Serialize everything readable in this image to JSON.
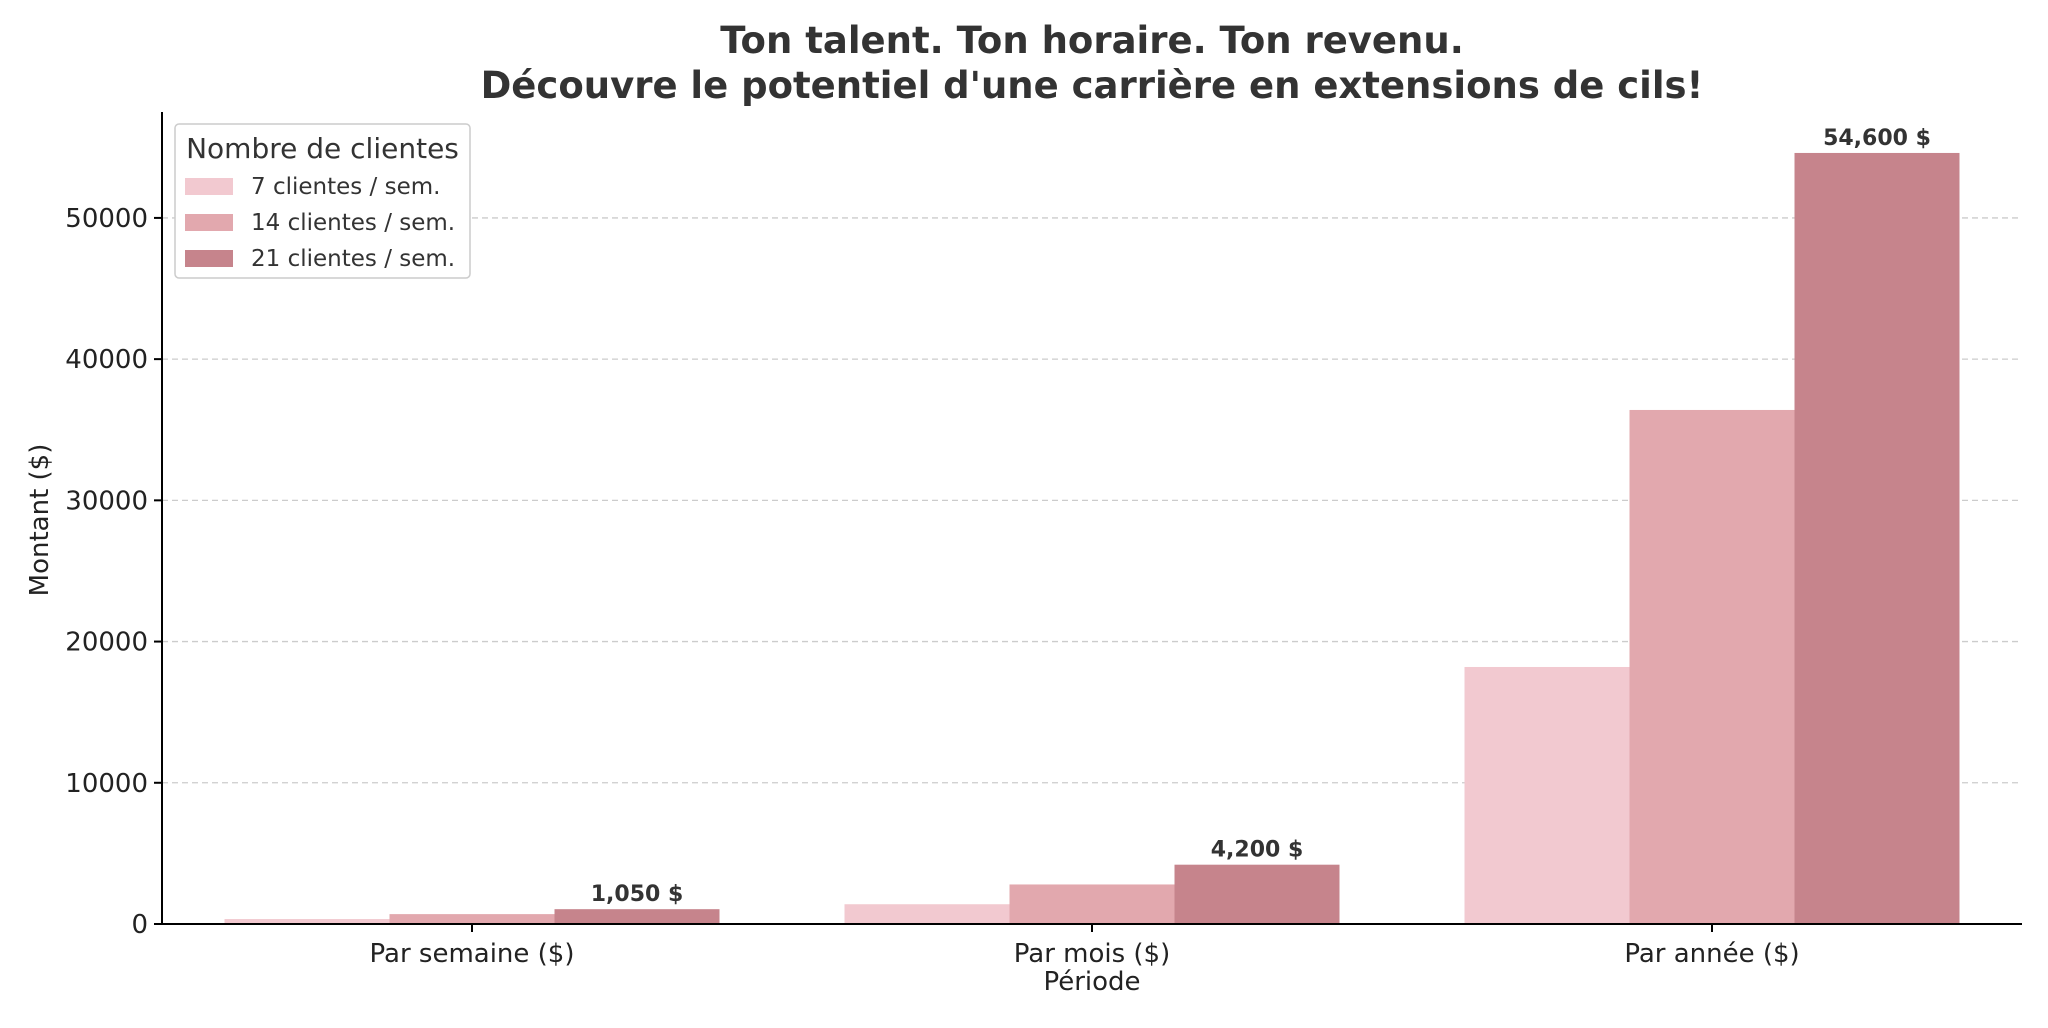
{
  "chart_data": {
    "type": "bar",
    "title_line1": "Ton talent. Ton horaire. Ton revenu.",
    "title_line2": "Découvre le potentiel d'une carrière en extensions de cils!",
    "xlabel": "Période",
    "ylabel": "Montant ($)",
    "categories": [
      "Par semaine ($)",
      "Par mois ($)",
      "Par année ($)"
    ],
    "ylim": [
      0,
      57500
    ],
    "yticks": [
      0,
      10000,
      20000,
      30000,
      40000,
      50000
    ],
    "grid": true,
    "legend": {
      "title": "Nombre de clientes",
      "placement": "top-left"
    },
    "series": [
      {
        "name": "7 clientes / sem.",
        "color": "#f2c9d0",
        "values": [
          350,
          1400,
          18200
        ]
      },
      {
        "name": "14 clientes / sem.",
        "color": "#e2a8ae",
        "values": [
          700,
          2800,
          36400
        ]
      },
      {
        "name": "21 clientes / sem.",
        "color": "#c6848c",
        "values": [
          1050,
          4200,
          54600
        ]
      }
    ],
    "data_labels": [
      {
        "series": 2,
        "category": 0,
        "text": "1,050 $"
      },
      {
        "series": 2,
        "category": 1,
        "text": "4,200 $"
      },
      {
        "series": 2,
        "category": 2,
        "text": "54,600 $"
      }
    ]
  }
}
